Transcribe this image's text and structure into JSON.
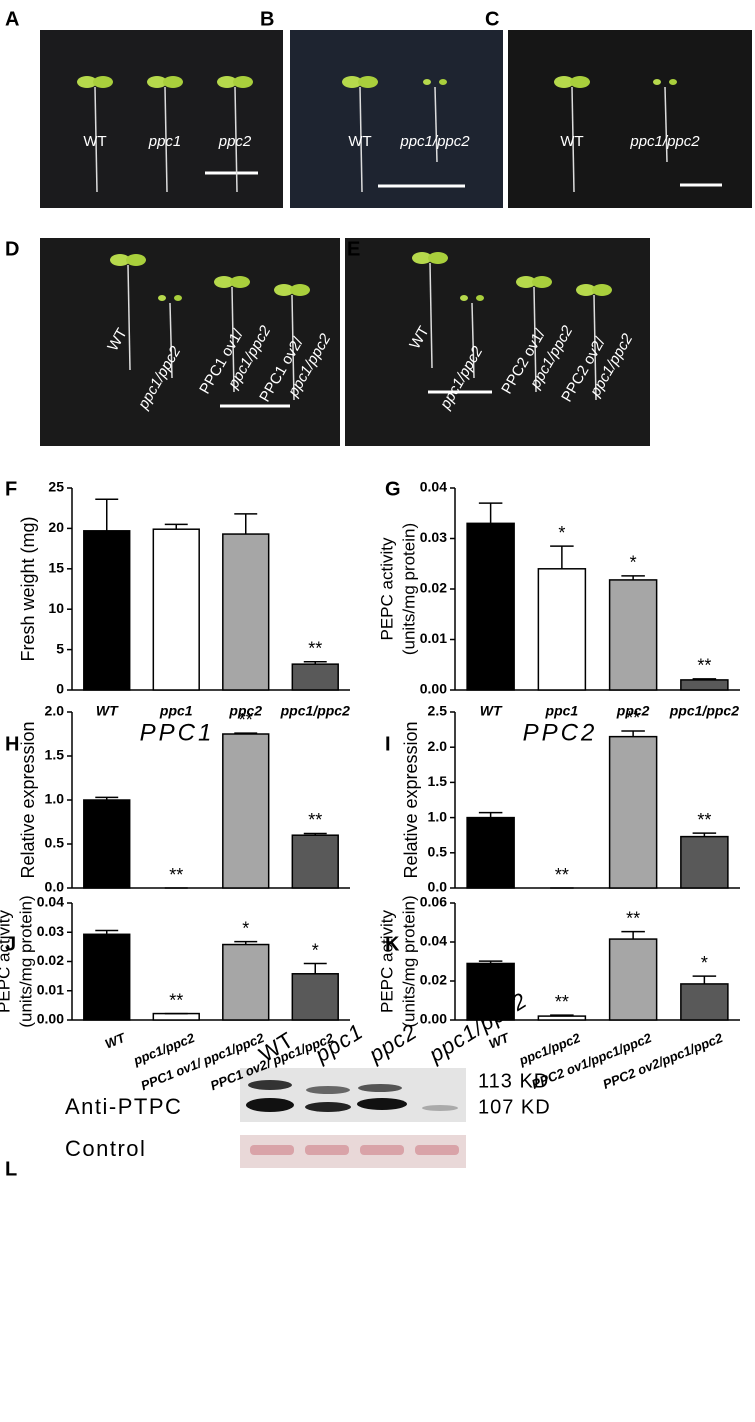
{
  "photo_panels": [
    {
      "letter": "A",
      "labels": [
        "WT",
        "ppc1",
        "ppc2"
      ]
    },
    {
      "letter": "B",
      "labels": [
        "WT",
        "ppc1/ppc2"
      ]
    },
    {
      "letter": "C",
      "labels": [
        "WT",
        "ppc1/ppc2"
      ]
    },
    {
      "letter": "D",
      "labels": [
        "WT",
        "ppc1/ppc2",
        [
          "PPC1 ov1/",
          "ppc1/ppc2"
        ],
        [
          "PPC1 ov2/",
          "ppc1/ppc2"
        ]
      ]
    },
    {
      "letter": "E",
      "labels": [
        "WT",
        "ppc1/ppc2",
        [
          "PPC2 ov1/",
          "ppc1/ppc2"
        ],
        [
          "PPC2 ov2/",
          "ppc1/ppc2"
        ]
      ]
    }
  ],
  "chart_data": [
    {
      "type": "bar",
      "letter": "F",
      "ylabel": [
        "Fresh weight (mg)"
      ],
      "categories": [
        "WT",
        "ppc1",
        "ppc2",
        "ppc1/ppc2"
      ],
      "values": [
        19.7,
        19.9,
        19.3,
        3.2
      ],
      "errors": [
        3.9,
        0.6,
        2.5,
        0.3
      ],
      "significance": [
        null,
        null,
        null,
        "**"
      ],
      "colors": [
        "#000000",
        "#ffffff",
        "#a6a6a6",
        "#595959"
      ],
      "ylim": [
        0,
        25
      ],
      "yticks": [
        0,
        5,
        10,
        15,
        20,
        25
      ]
    },
    {
      "type": "bar",
      "letter": "G",
      "ylabel": [
        "PEPC activity",
        "(units/mg protein)"
      ],
      "categories": [
        "WT",
        "ppc1",
        "ppc2",
        "ppc1/ppc2"
      ],
      "values": [
        0.033,
        0.024,
        0.0218,
        0.002
      ],
      "errors": [
        0.004,
        0.0045,
        0.0008,
        0.0002
      ],
      "significance": [
        null,
        "*",
        "*",
        "**"
      ],
      "colors": [
        "#000000",
        "#ffffff",
        "#a6a6a6",
        "#595959"
      ],
      "ylim": [
        0,
        0.04
      ],
      "yticks": [
        {
          "value": 0,
          "label": "0.00"
        },
        0.01,
        0.02,
        0.03,
        0.04
      ]
    },
    {
      "type": "bar",
      "letter": "H",
      "title": "PPC1",
      "ylabel": [
        "Relative expression"
      ],
      "categories": [
        null,
        null,
        null,
        null
      ],
      "values": [
        1.0,
        0,
        1.75,
        0.6
      ],
      "errors": [
        0.03,
        0,
        0.01,
        0.02
      ],
      "significance": [
        null,
        "**",
        "**",
        "**"
      ],
      "colors": [
        "#000000",
        "#ffffff",
        "#a6a6a6",
        "#595959"
      ],
      "ylim": [
        0,
        2
      ],
      "yticks": [
        {
          "value": 0,
          "label": "0.0"
        },
        0.5,
        {
          "value": 1,
          "label": "1.0"
        },
        1.5,
        {
          "value": 2,
          "label": "2.0"
        }
      ]
    },
    {
      "type": "bar",
      "letter": "I",
      "title": "PPC2",
      "ylabel": [
        "Relative expression"
      ],
      "categories": [
        null,
        null,
        null,
        null
      ],
      "values": [
        1.0,
        0,
        2.15,
        0.73
      ],
      "errors": [
        0.07,
        0,
        0.08,
        0.05
      ],
      "significance": [
        null,
        "**",
        "**",
        "**"
      ],
      "colors": [
        "#000000",
        "#ffffff",
        "#a6a6a6",
        "#595959"
      ],
      "ylim": [
        0,
        2.5
      ],
      "yticks": [
        {
          "value": 0,
          "label": "0.0"
        },
        0.5,
        {
          "value": 1,
          "label": "1.0"
        },
        1.5,
        {
          "value": 2,
          "label": "2.0"
        },
        2.5
      ]
    },
    {
      "type": "bar",
      "letter": "J",
      "ylabel": [
        "PEPC activity",
        "(units/mg protein)"
      ],
      "categories": [
        "WT",
        "ppc1/ppc2",
        "PPC1 ov1/ ppc1/ppc2",
        "PPC1 ov2/ ppc1/ppc2"
      ],
      "values": [
        0.0293,
        0.0022,
        0.0258,
        0.0158
      ],
      "errors": [
        0.0013,
        0,
        0.001,
        0.0035
      ],
      "significance": [
        null,
        "**",
        "*",
        "*"
      ],
      "colors": [
        "#000000",
        "#ffffff",
        "#a6a6a6",
        "#595959"
      ],
      "ylim": [
        0,
        0.04
      ],
      "yticks": [
        {
          "value": 0,
          "label": "0.00"
        },
        0.01,
        0.02,
        0.03,
        0.04
      ]
    },
    {
      "type": "bar",
      "letter": "K",
      "ylabel": [
        "PEPC activity",
        "(units/mg protein)"
      ],
      "categories": [
        "WT",
        "ppc1/ppc2",
        "PPC2 ov1/ppc1/ppc2",
        "PPC2 ov2/ppc1/ppc2"
      ],
      "values": [
        0.029,
        0.002,
        0.0415,
        0.0185
      ],
      "errors": [
        0.0012,
        0.0005,
        0.0038,
        0.004
      ],
      "significance": [
        null,
        "**",
        "**",
        "*"
      ],
      "colors": [
        "#000000",
        "#ffffff",
        "#a6a6a6",
        "#595959"
      ],
      "ylim": [
        0,
        0.06
      ],
      "yticks": [
        {
          "value": 0,
          "label": "0.00"
        },
        0.02,
        0.04,
        0.06
      ]
    }
  ],
  "blot": {
    "letter": "L",
    "lanes": [
      "WT",
      "ppc1",
      "ppc2",
      "ppc1/ppc2"
    ],
    "rows": [
      "Anti-PTPC",
      "Control"
    ],
    "bands": [
      "113 KD",
      "107 KD"
    ]
  }
}
